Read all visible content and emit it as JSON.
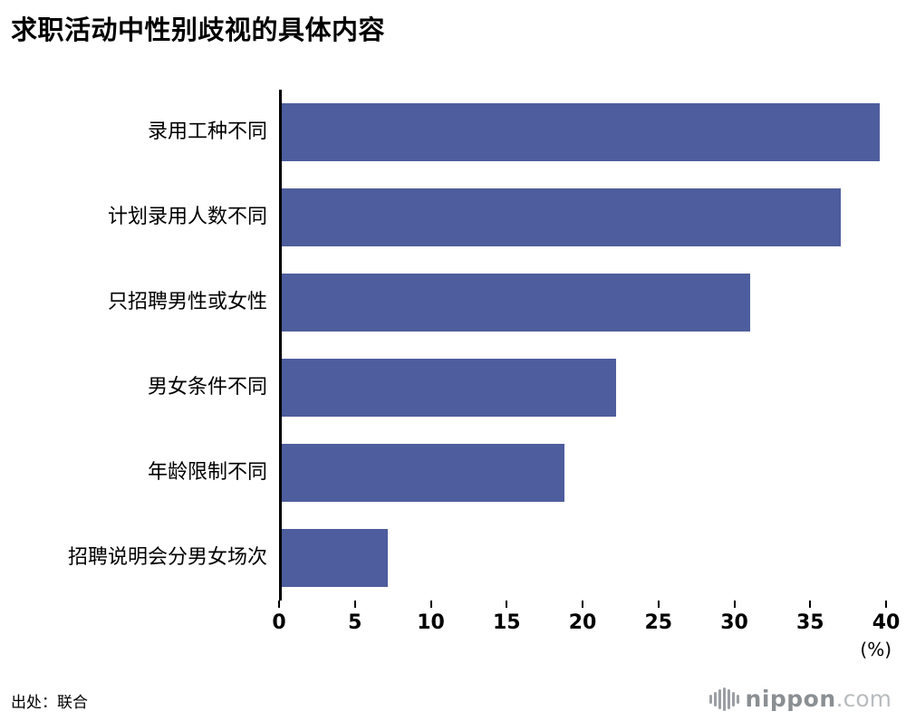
{
  "title": "求职活动中性别歧视的具体内容",
  "chart_data": {
    "type": "bar",
    "orientation": "horizontal",
    "title": "求职活动中性别歧视的具体内容",
    "categories": [
      "录用工种不同",
      "计划录用人数不同",
      "只招聘男性或女性",
      "男女条件不同",
      "年龄限制不同",
      "招聘说明会分男女场次"
    ],
    "values": [
      39.6,
      37.0,
      31.0,
      22.1,
      18.7,
      7.0
    ],
    "xlim": [
      0,
      40
    ],
    "xticks": [
      0,
      5,
      10,
      15,
      20,
      25,
      30,
      35,
      40
    ],
    "unit_label": "(%)",
    "xlabel": "",
    "ylabel": "",
    "grid": false,
    "legend": "none",
    "bar_color": "#4e5d9d"
  },
  "footer": {
    "source": "出处：联合",
    "logo_text": "nippon",
    "logo_suffix": ".com"
  }
}
